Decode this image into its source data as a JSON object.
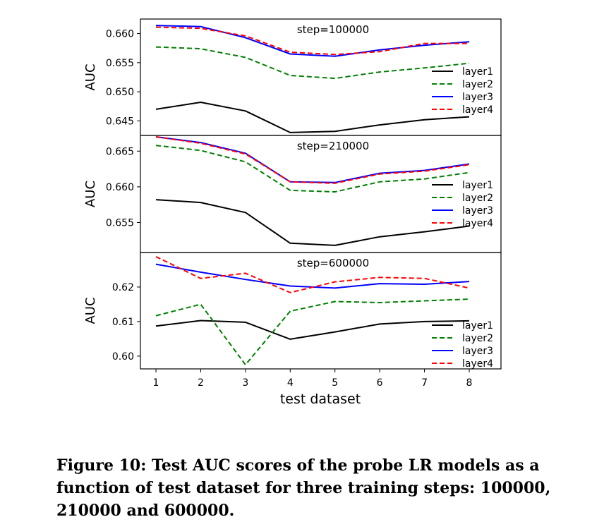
{
  "chart_data": [
    {
      "type": "line",
      "annotation": "step=100000",
      "ylabel": "AUC",
      "xlabel": "",
      "x": [
        1,
        2,
        3,
        4,
        5,
        6,
        7,
        8
      ],
      "ylim": [
        0.6425,
        0.6625
      ],
      "yticks": [
        "0.645",
        "0.650",
        "0.655",
        "0.660"
      ],
      "ytick_values": [
        0.645,
        0.65,
        0.655,
        0.66
      ],
      "legend": "right",
      "series": [
        {
          "name": "layer1",
          "color": "#000000",
          "style": "solid",
          "values": [
            0.647,
            0.6482,
            0.6467,
            0.643,
            0.6432,
            0.6443,
            0.6452,
            0.6457
          ]
        },
        {
          "name": "layer2",
          "color": "#008000",
          "style": "dashed",
          "values": [
            0.6577,
            0.6574,
            0.6559,
            0.6528,
            0.6523,
            0.6534,
            0.6541,
            0.6549
          ]
        },
        {
          "name": "layer3",
          "color": "#0000ff",
          "style": "solid",
          "values": [
            0.6614,
            0.6612,
            0.6593,
            0.6565,
            0.6561,
            0.6572,
            0.658,
            0.6586
          ]
        },
        {
          "name": "layer4",
          "color": "#ff0000",
          "style": "dashed",
          "values": [
            0.6611,
            0.6609,
            0.6596,
            0.6568,
            0.6564,
            0.6569,
            0.6583,
            0.6583
          ]
        }
      ]
    },
    {
      "type": "line",
      "annotation": "step=210000",
      "ylabel": "AUC",
      "xlabel": "",
      "x": [
        1,
        2,
        3,
        4,
        5,
        6,
        7,
        8
      ],
      "ylim": [
        0.6508,
        0.6672
      ],
      "yticks": [
        "0.655",
        "0.660",
        "0.665"
      ],
      "ytick_values": [
        0.655,
        0.66,
        0.665
      ],
      "legend": "right",
      "series": [
        {
          "name": "layer1",
          "color": "#000000",
          "style": "solid",
          "values": [
            0.6582,
            0.6578,
            0.6564,
            0.6521,
            0.6518,
            0.653,
            0.6537,
            0.6545
          ]
        },
        {
          "name": "layer2",
          "color": "#008000",
          "style": "dashed",
          "values": [
            0.6658,
            0.6651,
            0.6635,
            0.6595,
            0.6593,
            0.6607,
            0.6611,
            0.662
          ]
        },
        {
          "name": "layer3",
          "color": "#0000ff",
          "style": "solid",
          "values": [
            0.667,
            0.6662,
            0.6647,
            0.6607,
            0.6606,
            0.6619,
            0.6623,
            0.6632
          ]
        },
        {
          "name": "layer4",
          "color": "#ff0000",
          "style": "dashed",
          "values": [
            0.667,
            0.6661,
            0.6646,
            0.6607,
            0.6605,
            0.6618,
            0.6622,
            0.6631
          ]
        }
      ]
    },
    {
      "type": "line",
      "annotation": "step=600000",
      "ylabel": "AUC",
      "xlabel": "test dataset",
      "x": [
        1,
        2,
        3,
        4,
        5,
        6,
        7,
        8
      ],
      "xticks": [
        "1",
        "2",
        "3",
        "4",
        "5",
        "6",
        "7",
        "8"
      ],
      "ylim": [
        0.5963,
        0.63
      ],
      "yticks": [
        "0.60",
        "0.61",
        "0.62"
      ],
      "ytick_values": [
        0.6,
        0.61,
        0.62
      ],
      "legend": "bottom-right",
      "series": [
        {
          "name": "layer1",
          "color": "#000000",
          "style": "solid",
          "values": [
            0.6087,
            0.6103,
            0.6098,
            0.6049,
            0.607,
            0.6093,
            0.61,
            0.6102
          ]
        },
        {
          "name": "layer2",
          "color": "#008000",
          "style": "dashed",
          "values": [
            0.6117,
            0.615,
            0.5975,
            0.613,
            0.6158,
            0.6155,
            0.616,
            0.6165
          ]
        },
        {
          "name": "layer3",
          "color": "#0000ff",
          "style": "solid",
          "values": [
            0.6266,
            0.6243,
            0.6222,
            0.6203,
            0.6197,
            0.621,
            0.6208,
            0.6216
          ]
        },
        {
          "name": "layer4",
          "color": "#ff0000",
          "style": "dashed",
          "values": [
            0.6288,
            0.6225,
            0.624,
            0.6184,
            0.6215,
            0.6228,
            0.6225,
            0.6197
          ]
        }
      ]
    }
  ],
  "caption": "Figure 10: Test AUC scores of the probe LR models as a function of test dataset for three training steps: 100000, 210000 and 600000."
}
